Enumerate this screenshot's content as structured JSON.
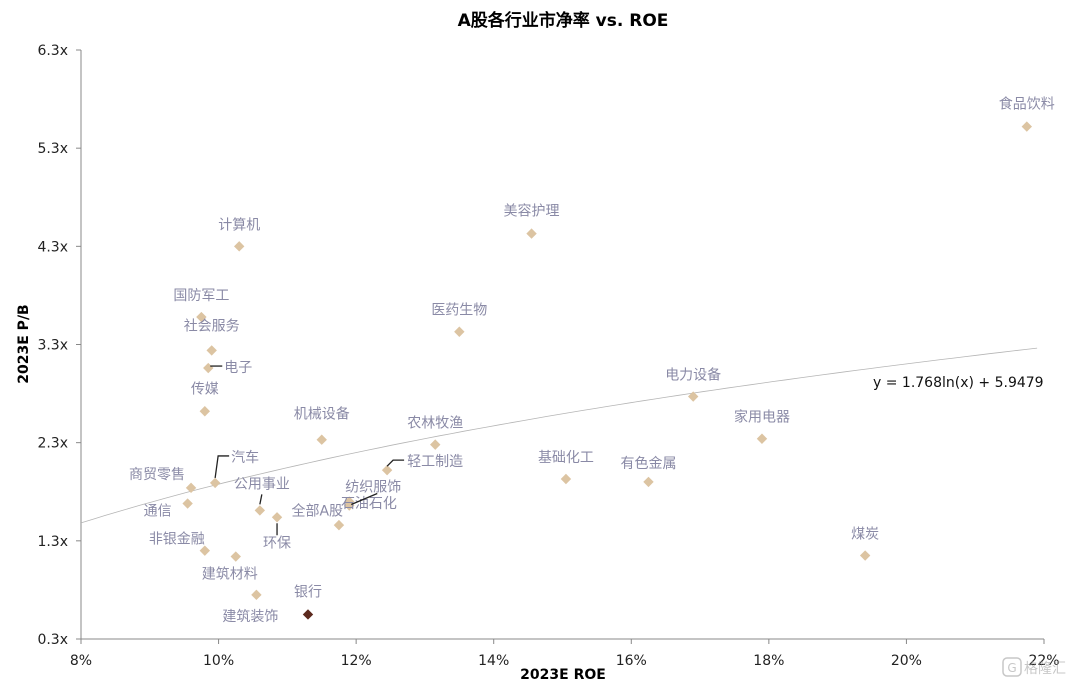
{
  "chart_data": {
    "type": "scatter",
    "title": "A股各行业市净率 vs. ROE",
    "xlabel": "2023E ROE",
    "ylabel": "2023E P/B",
    "xlim": [
      8,
      22
    ],
    "ylim": [
      0.3,
      6.3
    ],
    "x_ticks": [
      "8%",
      "10%",
      "12%",
      "14%",
      "16%",
      "18%",
      "20%",
      "22%"
    ],
    "y_ticks": [
      "0.3x",
      "1.3x",
      "2.3x",
      "3.3x",
      "4.3x",
      "5.3x",
      "6.3x"
    ],
    "trendline_equation": "y = 1.768ln(x) + 5.9479",
    "trendline": {
      "a": 1.768,
      "b": 5.9479
    },
    "grid": false,
    "colors": {
      "point": "#dcc4a2",
      "highlight": "#5c2a1e",
      "trendline": "#b5b5b5",
      "label": "#8a8aa6"
    },
    "points": [
      {
        "name": "食品饮料",
        "x": 21.75,
        "y": 5.52
      },
      {
        "name": "美容护理",
        "x": 14.55,
        "y": 4.43
      },
      {
        "name": "计算机",
        "x": 10.3,
        "y": 4.3
      },
      {
        "name": "医药生物",
        "x": 13.5,
        "y": 3.43
      },
      {
        "name": "国防军工",
        "x": 9.75,
        "y": 3.58
      },
      {
        "name": "社会服务",
        "x": 9.9,
        "y": 3.24
      },
      {
        "name": "电子",
        "x": 9.85,
        "y": 3.06
      },
      {
        "name": "传媒",
        "x": 9.8,
        "y": 2.62
      },
      {
        "name": "电力设备",
        "x": 16.9,
        "y": 2.77
      },
      {
        "name": "家用电器",
        "x": 17.9,
        "y": 2.34
      },
      {
        "name": "机械设备",
        "x": 11.5,
        "y": 2.33
      },
      {
        "name": "农林牧渔",
        "x": 13.15,
        "y": 2.28
      },
      {
        "name": "轻工制造",
        "x": 12.45,
        "y": 2.02
      },
      {
        "name": "基础化工",
        "x": 15.05,
        "y": 1.93
      },
      {
        "name": "有色金属",
        "x": 16.25,
        "y": 1.9
      },
      {
        "name": "汽车",
        "x": 9.95,
        "y": 1.89
      },
      {
        "name": "商贸零售",
        "x": 9.6,
        "y": 1.84
      },
      {
        "name": "通信",
        "x": 9.55,
        "y": 1.68
      },
      {
        "name": "纺织服饰",
        "x": 11.9,
        "y": 1.66
      },
      {
        "name": "全部A股",
        "x": 11.9,
        "y": 1.7
      },
      {
        "name": "公用事业",
        "x": 10.6,
        "y": 1.61
      },
      {
        "name": "环保",
        "x": 10.85,
        "y": 1.54
      },
      {
        "name": "非银金融",
        "x": 9.8,
        "y": 1.2
      },
      {
        "name": "建筑材料",
        "x": 10.25,
        "y": 1.14
      },
      {
        "name": "石油石化",
        "x": 11.75,
        "y": 1.46
      },
      {
        "name": "煤炭",
        "x": 19.4,
        "y": 1.15
      },
      {
        "name": "建筑装饰",
        "x": 10.55,
        "y": 0.75
      },
      {
        "name": "银行",
        "x": 11.3,
        "y": 0.55,
        "highlight": true
      }
    ]
  },
  "watermark": "格隆汇"
}
